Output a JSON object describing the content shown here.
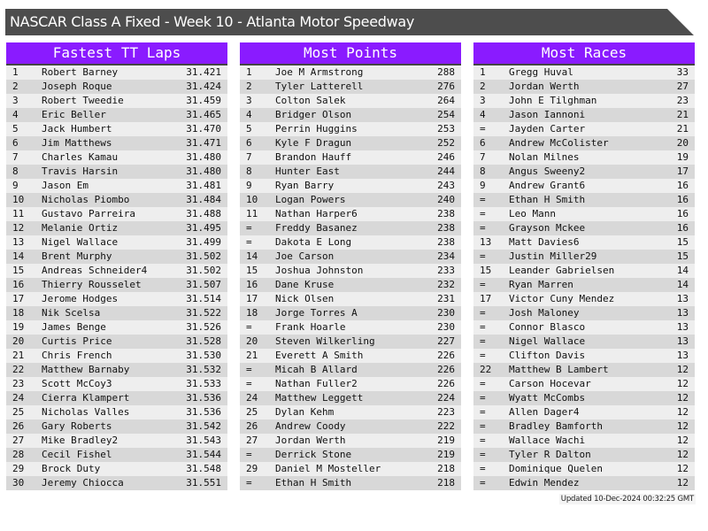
{
  "title": "NASCAR Class A Fixed - Week 10 - Atlanta Motor Speedway",
  "colors": {
    "title_bg": "#4d4d4d",
    "header_bg": "#8a1bff",
    "row_light": "#eeeeee",
    "row_dark": "#d8d8d8"
  },
  "panels": [
    {
      "heading": "Fastest TT Laps",
      "rows": [
        [
          "1",
          "Robert Barney",
          "31.421"
        ],
        [
          "2",
          "Joseph Roque",
          "31.424"
        ],
        [
          "3",
          "Robert Tweedie",
          "31.459"
        ],
        [
          "4",
          "Eric Beller",
          "31.465"
        ],
        [
          "5",
          "Jack Humbert",
          "31.470"
        ],
        [
          "6",
          "Jim Matthews",
          "31.471"
        ],
        [
          "7",
          "Charles Kamau",
          "31.480"
        ],
        [
          "8",
          "Travis Harsin",
          "31.480"
        ],
        [
          "9",
          "Jason Em",
          "31.481"
        ],
        [
          "10",
          "Nicholas Piombo",
          "31.484"
        ],
        [
          "11",
          "Gustavo Parreira",
          "31.488"
        ],
        [
          "12",
          "Melanie Ortiz",
          "31.495"
        ],
        [
          "13",
          "Nigel Wallace",
          "31.499"
        ],
        [
          "14",
          "Brent Murphy",
          "31.502"
        ],
        [
          "15",
          "Andreas Schneider4",
          "31.502"
        ],
        [
          "16",
          "Thierry Rousselet",
          "31.507"
        ],
        [
          "17",
          "Jerome Hodges",
          "31.514"
        ],
        [
          "18",
          "Nik Scelsa",
          "31.522"
        ],
        [
          "19",
          "James Benge",
          "31.526"
        ],
        [
          "20",
          "Curtis Price",
          "31.528"
        ],
        [
          "21",
          "Chris French",
          "31.530"
        ],
        [
          "22",
          "Matthew Barnaby",
          "31.532"
        ],
        [
          "23",
          "Scott McCoy3",
          "31.533"
        ],
        [
          "24",
          "Cierra Klampert",
          "31.536"
        ],
        [
          "25",
          "Nicholas Valles",
          "31.536"
        ],
        [
          "26",
          "Gary Roberts",
          "31.542"
        ],
        [
          "27",
          "Mike Bradley2",
          "31.543"
        ],
        [
          "28",
          "Cecil Fishel",
          "31.544"
        ],
        [
          "29",
          "Brock Duty",
          "31.548"
        ],
        [
          "30",
          "Jeremy Chiocca",
          "31.551"
        ]
      ]
    },
    {
      "heading": "Most Points",
      "rows": [
        [
          "1",
          "Joe M Armstrong",
          "288"
        ],
        [
          "2",
          "Tyler Latterell",
          "276"
        ],
        [
          "3",
          "Colton Salek",
          "264"
        ],
        [
          "4",
          "Bridger Olson",
          "254"
        ],
        [
          "5",
          "Perrin Huggins",
          "253"
        ],
        [
          "6",
          "Kyle F Dragun",
          "252"
        ],
        [
          "7",
          "Brandon Hauff",
          "246"
        ],
        [
          "8",
          "Hunter East",
          "244"
        ],
        [
          "9",
          "Ryan Barry",
          "243"
        ],
        [
          "10",
          "Logan Powers",
          "240"
        ],
        [
          "11",
          "Nathan Harper6",
          "238"
        ],
        [
          "=",
          "Freddy Basanez",
          "238"
        ],
        [
          "=",
          "Dakota E Long",
          "238"
        ],
        [
          "14",
          "Joe Carson",
          "234"
        ],
        [
          "15",
          "Joshua Johnston",
          "233"
        ],
        [
          "16",
          "Dane Kruse",
          "232"
        ],
        [
          "17",
          "Nick Olsen",
          "231"
        ],
        [
          "18",
          "Jorge Torres A",
          "230"
        ],
        [
          "=",
          "Frank Hoarle",
          "230"
        ],
        [
          "20",
          "Steven Wilkerling",
          "227"
        ],
        [
          "21",
          "Everett A Smith",
          "226"
        ],
        [
          "=",
          "Micah B Allard",
          "226"
        ],
        [
          "=",
          "Nathan Fuller2",
          "226"
        ],
        [
          "24",
          "Matthew Leggett",
          "224"
        ],
        [
          "25",
          "Dylan Kehm",
          "223"
        ],
        [
          "26",
          "Andrew Coody",
          "222"
        ],
        [
          "27",
          "Jordan Werth",
          "219"
        ],
        [
          "=",
          "Derrick Stone",
          "219"
        ],
        [
          "29",
          "Daniel M Mosteller",
          "218"
        ],
        [
          "=",
          "Ethan H Smith",
          "218"
        ]
      ]
    },
    {
      "heading": "Most Races",
      "rows": [
        [
          "1",
          "Gregg Huval",
          "33"
        ],
        [
          "2",
          "Jordan Werth",
          "27"
        ],
        [
          "3",
          "John E Tilghman",
          "23"
        ],
        [
          "4",
          "Jason Iannoni",
          "21"
        ],
        [
          "=",
          "Jayden Carter",
          "21"
        ],
        [
          "6",
          "Andrew McColister",
          "20"
        ],
        [
          "7",
          "Nolan Milnes",
          "19"
        ],
        [
          "8",
          "Angus Sweeny2",
          "17"
        ],
        [
          "9",
          "Andrew Grant6",
          "16"
        ],
        [
          "=",
          "Ethan H Smith",
          "16"
        ],
        [
          "=",
          "Leo Mann",
          "16"
        ],
        [
          "=",
          "Grayson Mckee",
          "16"
        ],
        [
          "13",
          "Matt Davies6",
          "15"
        ],
        [
          "=",
          "Justin Miller29",
          "15"
        ],
        [
          "15",
          "Leander Gabrielsen",
          "14"
        ],
        [
          "=",
          "Ryan Marren",
          "14"
        ],
        [
          "17",
          "Victor Cuny Mendez",
          "13"
        ],
        [
          "=",
          "Josh Maloney",
          "13"
        ],
        [
          "=",
          "Connor Blasco",
          "13"
        ],
        [
          "=",
          "Nigel Wallace",
          "13"
        ],
        [
          "=",
          "Clifton Davis",
          "13"
        ],
        [
          "22",
          "Matthew B Lambert",
          "12"
        ],
        [
          "=",
          "Carson Hocevar",
          "12"
        ],
        [
          "=",
          "Wyatt McCombs",
          "12"
        ],
        [
          "=",
          "Allen Dager4",
          "12"
        ],
        [
          "=",
          "Bradley Bamforth",
          "12"
        ],
        [
          "=",
          "Wallace Wachi",
          "12"
        ],
        [
          "=",
          "Tyler R Dalton",
          "12"
        ],
        [
          "=",
          "Dominique Quelen",
          "12"
        ],
        [
          "=",
          "Edwin Mendez",
          "12"
        ]
      ]
    }
  ],
  "footer": "Updated 10-Dec-2024 00:32:25 GMT"
}
